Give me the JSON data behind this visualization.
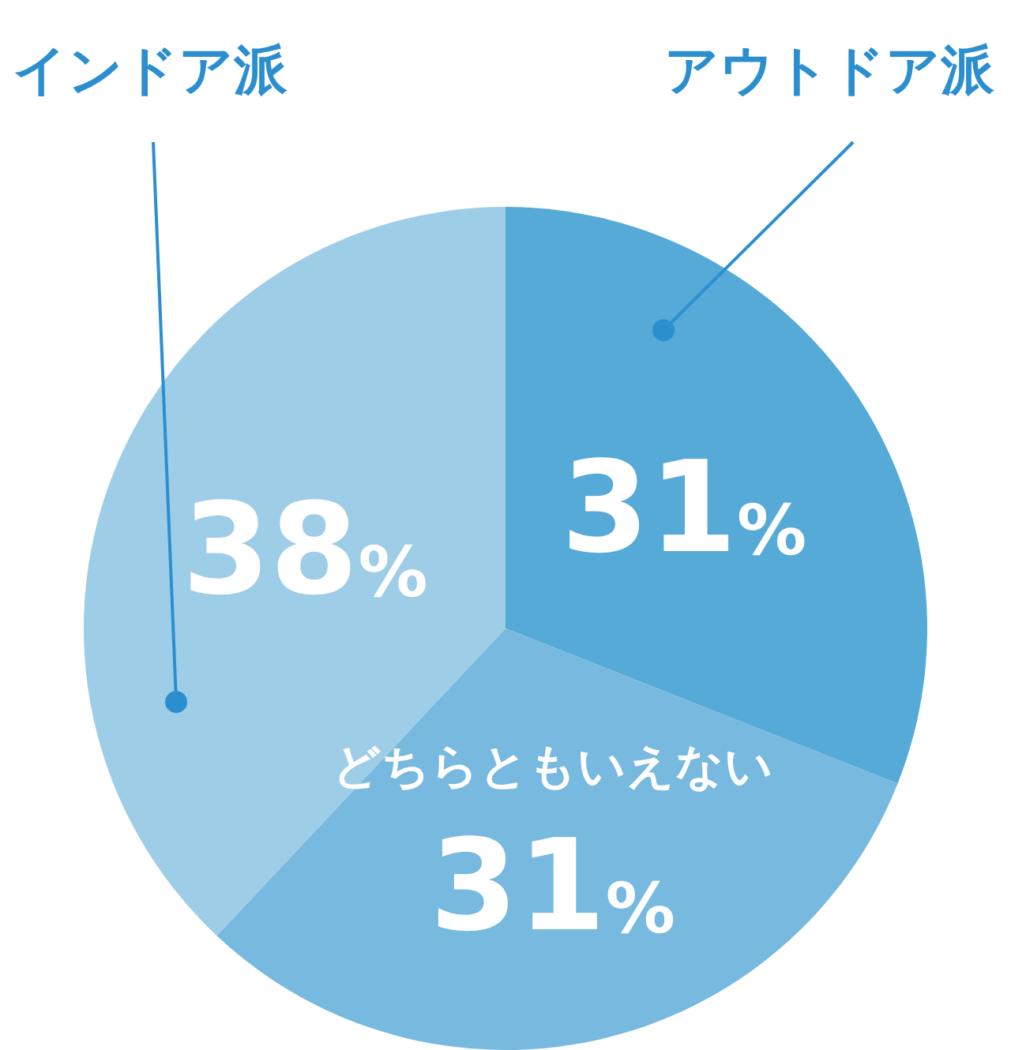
{
  "chart_data": {
    "type": "pie",
    "categories": [
      "アウトドア派",
      "どちらともいえない",
      "インドア派"
    ],
    "values": [
      31,
      31,
      38
    ],
    "colors": [
      "#55aad8",
      "#77b9df",
      "#9ecde8"
    ],
    "value_labels": [
      "31%",
      "31%",
      "38%"
    ]
  }
}
